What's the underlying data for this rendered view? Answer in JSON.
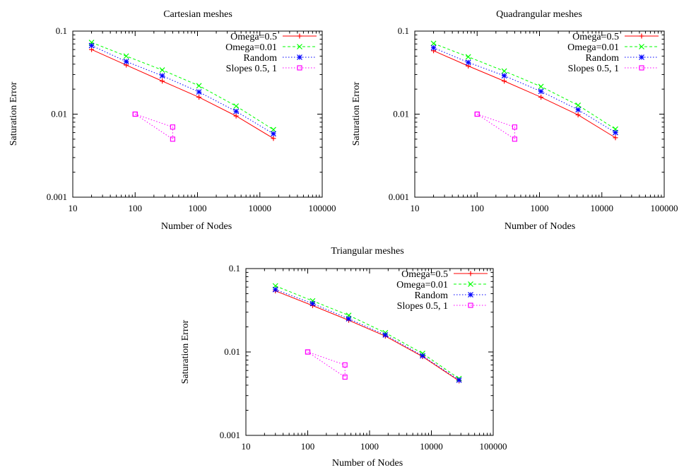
{
  "chart_data": [
    {
      "type": "line",
      "title": "Cartesian meshes",
      "xlabel": "Number of Nodes",
      "ylabel": "Saturation Error",
      "xscale": "log",
      "yscale": "log",
      "xlim": [
        10,
        100000
      ],
      "ylim": [
        0.001,
        0.1
      ],
      "xticks": [
        "10",
        "100",
        "1000",
        "10000",
        "100000"
      ],
      "yticks": [
        "0.001",
        "0.01",
        "0.1"
      ],
      "legend_position": "top-right",
      "grid": false,
      "series": [
        {
          "name": "Omega=0.5",
          "color": "#ff0000",
          "marker": "plus",
          "dash": "solid",
          "x": [
            20,
            72,
            272,
            1056,
            4160,
            16512
          ],
          "y": [
            0.06,
            0.039,
            0.025,
            0.016,
            0.0095,
            0.0051
          ]
        },
        {
          "name": "Omega=0.01",
          "color": "#00ff00",
          "marker": "cross",
          "dash": "dash",
          "x": [
            20,
            72,
            272,
            1056,
            4160,
            16512
          ],
          "y": [
            0.073,
            0.05,
            0.034,
            0.022,
            0.0125,
            0.0065
          ]
        },
        {
          "name": "Random",
          "color": "#0000ff",
          "marker": "star",
          "dash": "dot",
          "x": [
            20,
            72,
            272,
            1056,
            4160,
            16512
          ],
          "y": [
            0.067,
            0.043,
            0.029,
            0.0185,
            0.0108,
            0.0058
          ]
        },
        {
          "name": "Slopes 0.5, 1",
          "color": "#ff00ff",
          "marker": "square",
          "dash": "dot",
          "x": [
            100,
            400,
            400,
            100
          ],
          "y": [
            0.01,
            0.005,
            0.007,
            0.01
          ]
        }
      ]
    },
    {
      "type": "line",
      "title": "Quadrangular meshes",
      "xlabel": "Number of Nodes",
      "ylabel": "Saturation Error",
      "xscale": "log",
      "yscale": "log",
      "xlim": [
        10,
        100000
      ],
      "ylim": [
        0.001,
        0.1
      ],
      "xticks": [
        "10",
        "100",
        "1000",
        "10000",
        "100000"
      ],
      "yticks": [
        "0.001",
        "0.01",
        "0.1"
      ],
      "legend_position": "top-right",
      "grid": false,
      "series": [
        {
          "name": "Omega=0.5",
          "color": "#ff0000",
          "marker": "plus",
          "dash": "solid",
          "x": [
            20,
            72,
            272,
            1056,
            4160,
            16512
          ],
          "y": [
            0.058,
            0.038,
            0.025,
            0.016,
            0.0098,
            0.0052
          ]
        },
        {
          "name": "Omega=0.01",
          "color": "#00ff00",
          "marker": "cross",
          "dash": "dash",
          "x": [
            20,
            72,
            272,
            1056,
            4160,
            16512
          ],
          "y": [
            0.071,
            0.049,
            0.033,
            0.0215,
            0.0128,
            0.0066
          ]
        },
        {
          "name": "Random",
          "color": "#0000ff",
          "marker": "star",
          "dash": "dot",
          "x": [
            20,
            72,
            272,
            1056,
            4160,
            16512
          ],
          "y": [
            0.063,
            0.042,
            0.029,
            0.0188,
            0.0113,
            0.006
          ]
        },
        {
          "name": "Slopes 0.5, 1",
          "color": "#ff00ff",
          "marker": "square",
          "dash": "dot",
          "x": [
            100,
            400,
            400,
            100
          ],
          "y": [
            0.01,
            0.005,
            0.007,
            0.01
          ]
        }
      ]
    },
    {
      "type": "line",
      "title": "Triangular meshes",
      "xlabel": "Number of Nodes",
      "ylabel": "Saturation Error",
      "xscale": "log",
      "yscale": "log",
      "xlim": [
        10,
        100000
      ],
      "ylim": [
        0.001,
        0.1
      ],
      "xticks": [
        "10",
        "100",
        "1000",
        "10000",
        "100000"
      ],
      "yticks": [
        "0.001",
        "0.01",
        "0.1"
      ],
      "legend_position": "top-right",
      "grid": false,
      "series": [
        {
          "name": "Omega=0.5",
          "color": "#ff0000",
          "marker": "plus",
          "dash": "solid",
          "x": [
            30,
            120,
            460,
            1800,
            7200,
            28000
          ],
          "y": [
            0.054,
            0.036,
            0.024,
            0.0155,
            0.0088,
            0.0045
          ]
        },
        {
          "name": "Omega=0.01",
          "color": "#00ff00",
          "marker": "cross",
          "dash": "dash",
          "x": [
            30,
            120,
            460,
            1800,
            7200,
            28000
          ],
          "y": [
            0.062,
            0.041,
            0.0275,
            0.017,
            0.0096,
            0.0048
          ]
        },
        {
          "name": "Random",
          "color": "#0000ff",
          "marker": "star",
          "dash": "dot",
          "x": [
            30,
            120,
            460,
            1800,
            7200,
            28000
          ],
          "y": [
            0.056,
            0.038,
            0.025,
            0.016,
            0.009,
            0.0046
          ]
        },
        {
          "name": "Slopes 0.5, 1",
          "color": "#ff00ff",
          "marker": "square",
          "dash": "dot",
          "x": [
            100,
            400,
            400,
            100
          ],
          "y": [
            0.01,
            0.005,
            0.007,
            0.01
          ]
        }
      ]
    }
  ]
}
